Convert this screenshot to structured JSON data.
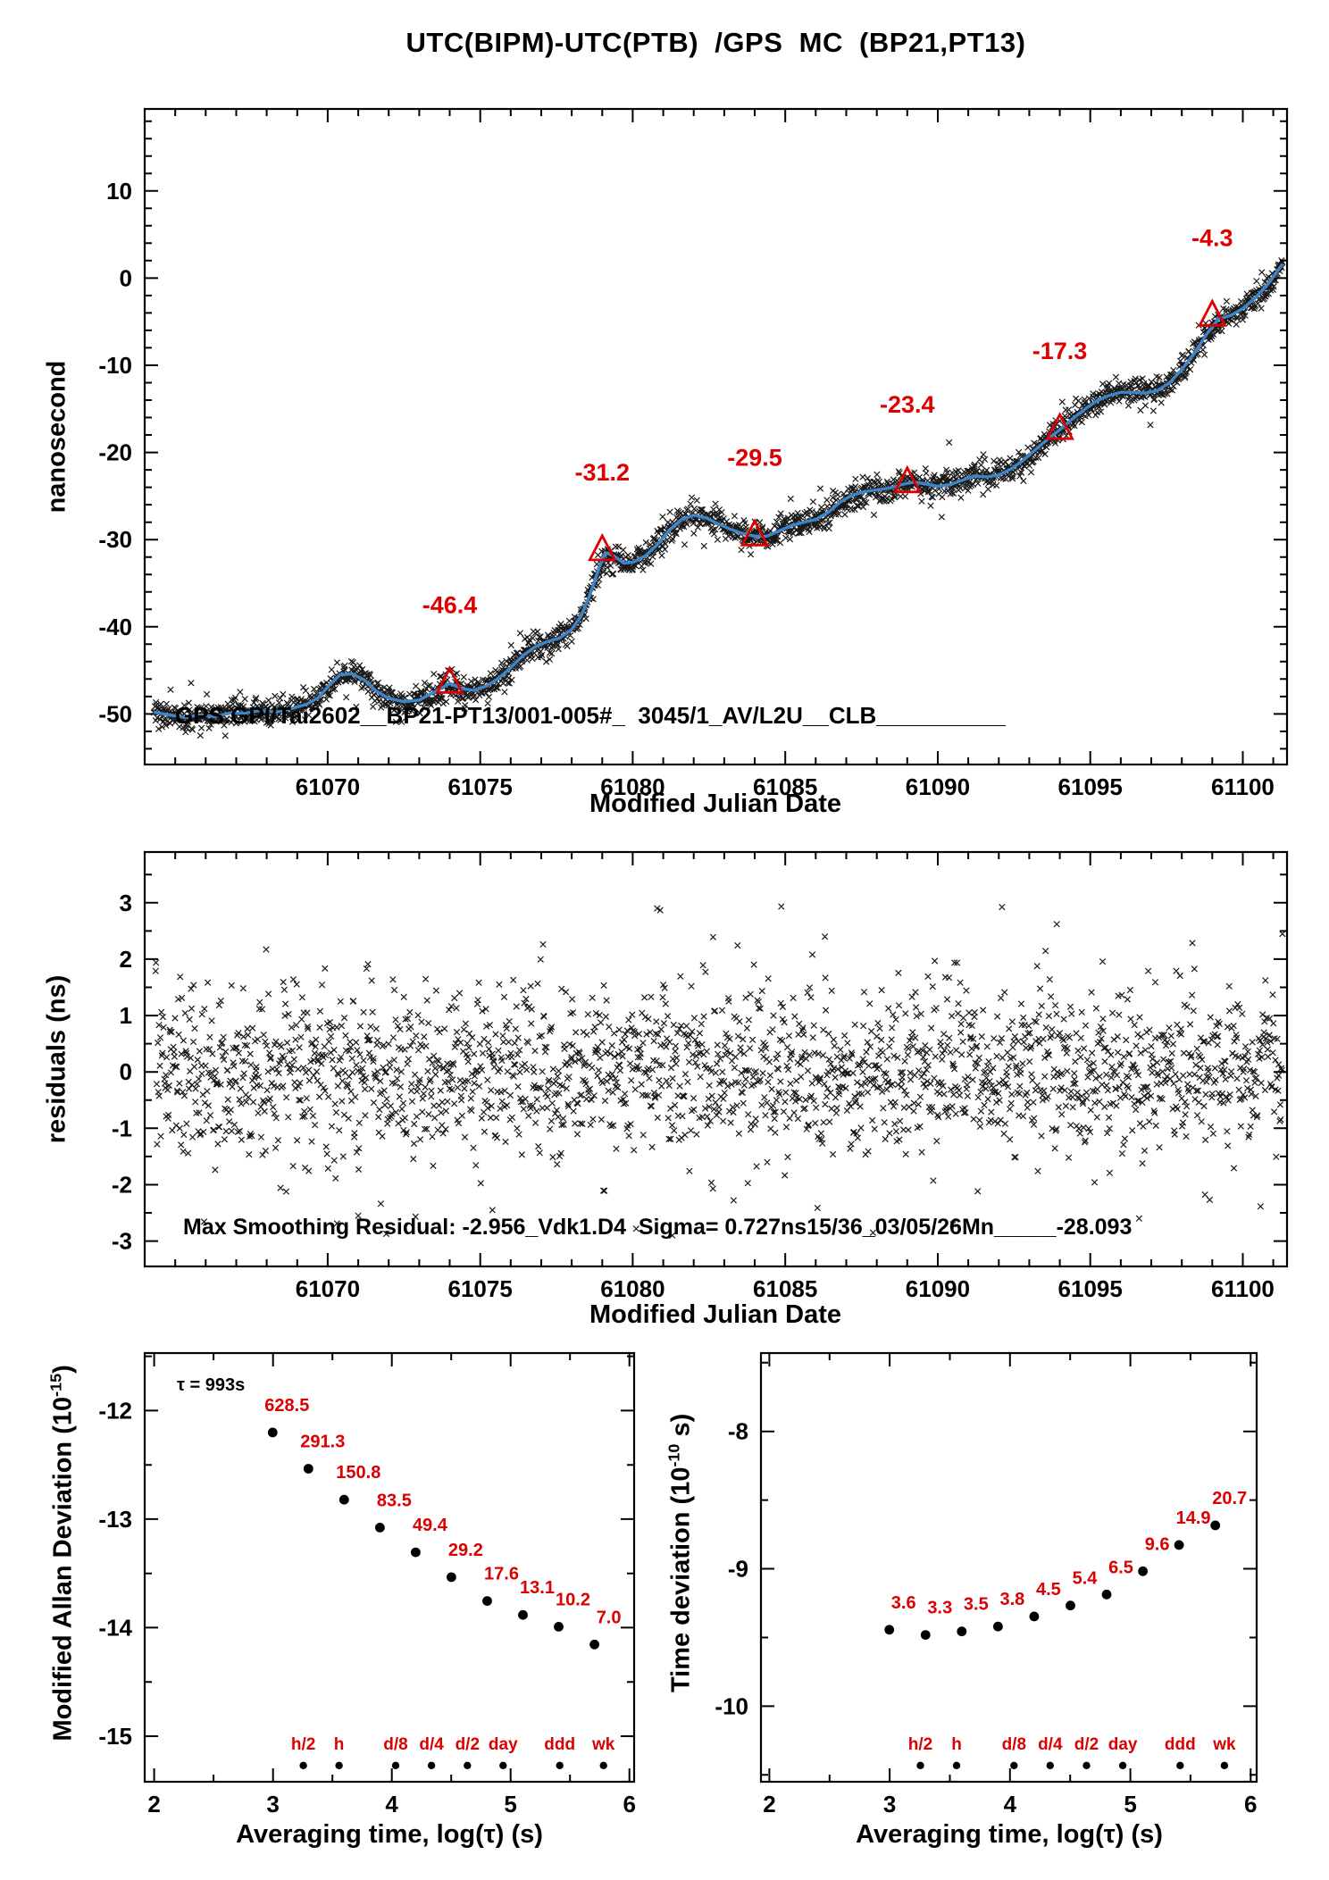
{
  "title": "UTC(BIPM)-UTC(PTB)  /GPS  MC  (BP21,PT13)",
  "colors": {
    "accent_red": "#dd0000",
    "trend_blue": "#3d85c8",
    "marker_black": "#000000"
  },
  "time_marks": [
    {
      "label": "h/2",
      "log_tau": 3.255
    },
    {
      "label": "h",
      "log_tau": 3.556
    },
    {
      "label": "d/8",
      "log_tau": 4.033
    },
    {
      "label": "d/4",
      "log_tau": 4.334
    },
    {
      "label": "d/2",
      "log_tau": 4.636
    },
    {
      "label": "day",
      "log_tau": 4.937
    },
    {
      "label": "ddd",
      "log_tau": 5.414
    },
    {
      "label": "wk",
      "log_tau": 5.782
    }
  ],
  "chart_data": [
    {
      "id": "utc_offset",
      "type": "scatter",
      "xlabel": "Modified Julian Date",
      "ylabel": "nanosecond",
      "annotation": "GPS.GPI/Tai2602__BP21-PT13/001-005#_  3045/1_AV/L2U__CLB__________",
      "xlim": [
        61064.0,
        61101.45
      ],
      "ylim": [
        -55.8,
        19.4
      ],
      "xticks": [
        61070,
        61075,
        61080,
        61085,
        61090,
        61095,
        61100
      ],
      "xminor": 1,
      "yticks": [
        10,
        0,
        -10,
        -20,
        -30,
        -40,
        -50
      ],
      "yminor": 2,
      "scatter": {
        "n": 2300,
        "sigma": 0.75,
        "seed": 7
      },
      "trend": [
        [
          61064.3,
          -49.8
        ],
        [
          61064.8,
          -50.1
        ],
        [
          61065.3,
          -50.4
        ],
        [
          61065.8,
          -50.1
        ],
        [
          61066.3,
          -50.3
        ],
        [
          61066.8,
          -49.9
        ],
        [
          61067.3,
          -49.9
        ],
        [
          61067.8,
          -49.6
        ],
        [
          61068.3,
          -49.8
        ],
        [
          61068.8,
          -49.4
        ],
        [
          61069.3,
          -48.9
        ],
        [
          61069.7,
          -48.1
        ],
        [
          61070.0,
          -46.9
        ],
        [
          61070.4,
          -45.5
        ],
        [
          61070.8,
          -45.4
        ],
        [
          61071.2,
          -46.1
        ],
        [
          61071.6,
          -47.4
        ],
        [
          61072.0,
          -48.2
        ],
        [
          61072.5,
          -48.6
        ],
        [
          61073.0,
          -48.4
        ],
        [
          61073.5,
          -47.5
        ],
        [
          61074.0,
          -46.5
        ],
        [
          61074.4,
          -47.1
        ],
        [
          61074.8,
          -47.3
        ],
        [
          61075.2,
          -46.8
        ],
        [
          61075.6,
          -45.9
        ],
        [
          61076.0,
          -44.7
        ],
        [
          61076.4,
          -43.3
        ],
        [
          61076.8,
          -42.3
        ],
        [
          61077.2,
          -41.7
        ],
        [
          61077.6,
          -41.3
        ],
        [
          61078.0,
          -40.3
        ],
        [
          61078.3,
          -38.8
        ],
        [
          61078.6,
          -36.3
        ],
        [
          61078.9,
          -33.2
        ],
        [
          61079.1,
          -31.5
        ],
        [
          61079.4,
          -31.9
        ],
        [
          61079.7,
          -32.7
        ],
        [
          61080.0,
          -32.6
        ],
        [
          61080.4,
          -31.9
        ],
        [
          61080.8,
          -30.6
        ],
        [
          61081.2,
          -28.9
        ],
        [
          61081.6,
          -27.7
        ],
        [
          61082.0,
          -27.2
        ],
        [
          61082.4,
          -27.5
        ],
        [
          61082.8,
          -28.2
        ],
        [
          61083.2,
          -28.8
        ],
        [
          61083.6,
          -29.3
        ],
        [
          61084.0,
          -29.6
        ],
        [
          61084.4,
          -29.6
        ],
        [
          61084.8,
          -29.0
        ],
        [
          61085.2,
          -28.4
        ],
        [
          61085.6,
          -28.0
        ],
        [
          61086.0,
          -27.7
        ],
        [
          61086.4,
          -26.9
        ],
        [
          61086.8,
          -25.7
        ],
        [
          61087.2,
          -24.9
        ],
        [
          61087.6,
          -24.5
        ],
        [
          61088.0,
          -24.3
        ],
        [
          61088.4,
          -24.1
        ],
        [
          61088.8,
          -23.7
        ],
        [
          61089.2,
          -23.4
        ],
        [
          61089.6,
          -23.6
        ],
        [
          61090.0,
          -23.9
        ],
        [
          61090.4,
          -23.7
        ],
        [
          61090.8,
          -23.2
        ],
        [
          61091.2,
          -22.7
        ],
        [
          61091.6,
          -22.8
        ],
        [
          61092.0,
          -22.6
        ],
        [
          61092.4,
          -21.9
        ],
        [
          61092.8,
          -20.9
        ],
        [
          61093.2,
          -19.7
        ],
        [
          61093.6,
          -18.5
        ],
        [
          61094.0,
          -17.4
        ],
        [
          61094.4,
          -16.2
        ],
        [
          61094.8,
          -15.1
        ],
        [
          61095.2,
          -14.1
        ],
        [
          61095.6,
          -13.5
        ],
        [
          61096.0,
          -13.1
        ],
        [
          61096.4,
          -13.1
        ],
        [
          61096.8,
          -13.2
        ],
        [
          61097.2,
          -12.9
        ],
        [
          61097.6,
          -12.0
        ],
        [
          61098.0,
          -10.5
        ],
        [
          61098.4,
          -8.7
        ],
        [
          61098.8,
          -6.5
        ],
        [
          61099.2,
          -4.7
        ],
        [
          61099.6,
          -4.3
        ],
        [
          61100.0,
          -3.5
        ],
        [
          61100.4,
          -2.3
        ],
        [
          61100.8,
          -0.8
        ],
        [
          61101.3,
          1.6
        ]
      ],
      "triangles": [
        {
          "x": 61074,
          "y": -46.4,
          "label": "-46.4"
        },
        {
          "x": 61079,
          "y": -31.2,
          "label": "-31.2"
        },
        {
          "x": 61084,
          "y": -29.5,
          "label": "-29.5"
        },
        {
          "x": 61089,
          "y": -23.4,
          "label": "-23.4"
        },
        {
          "x": 61094,
          "y": -17.3,
          "label": "-17.3"
        },
        {
          "x": 61099,
          "y": -4.3,
          "label": "-4.3"
        }
      ]
    },
    {
      "id": "residuals",
      "type": "scatter",
      "xlabel": "Modified Julian Date",
      "ylabel": "residuals (ns)",
      "annotation": "Max Smoothing Residual: -2.956_Vdk1.D4  Sigma= 0.727ns15/36_03/05/26Mn_____-28.093",
      "xlim": [
        61064.0,
        61101.45
      ],
      "ylim": [
        -3.45,
        3.9
      ],
      "xticks": [
        61070,
        61075,
        61080,
        61085,
        61090,
        61095,
        61100
      ],
      "xminor": 1,
      "yticks": [
        3,
        2,
        1,
        0,
        -1,
        -2,
        -3
      ],
      "yminor": 0.5,
      "scatter": {
        "n": 2100,
        "sigma": 0.73,
        "seed": 13,
        "xrange": [
          61064.35,
          61101.3
        ]
      },
      "outliers": [
        [
          61080.8,
          2.9
        ],
        [
          61081.3,
          -2.9
        ],
        [
          61093.9,
          2.62
        ],
        [
          61071.0,
          -2.55
        ],
        [
          61096.6,
          -2.6
        ],
        [
          61086.3,
          2.4
        ],
        [
          61075.4,
          -2.45
        ],
        [
          61090.5,
          -2.7
        ]
      ]
    },
    {
      "id": "mdev",
      "type": "scatter",
      "xlabel": "Averaging time, log(τ) (s)",
      "ylabel_pre": "Modified Allan Deviation (10",
      "ylabel_sup": "-15",
      "ylabel_post": ")",
      "tau_annotation": "τ = 993s",
      "value_exponent": -15,
      "xlim": [
        1.92,
        6.04
      ],
      "ylim": [
        -15.42,
        -11.47
      ],
      "xticks": [
        2,
        3,
        4,
        5,
        6
      ],
      "xminor": 0.5,
      "yticks": [
        -12,
        -13,
        -14,
        -15
      ],
      "yminor": 0.5,
      "points": [
        {
          "log_tau": 2.997,
          "value": 628.5,
          "label": "628.5"
        },
        {
          "log_tau": 3.298,
          "value": 291.3,
          "label": "291.3"
        },
        {
          "log_tau": 3.599,
          "value": 150.8,
          "label": "150.8"
        },
        {
          "log_tau": 3.9,
          "value": 83.5,
          "label": "83.5"
        },
        {
          "log_tau": 4.201,
          "value": 49.4,
          "label": "49.4"
        },
        {
          "log_tau": 4.502,
          "value": 29.2,
          "label": "29.2"
        },
        {
          "log_tau": 4.803,
          "value": 17.6,
          "label": "17.6"
        },
        {
          "log_tau": 5.104,
          "value": 13.1,
          "label": "13.1"
        },
        {
          "log_tau": 5.405,
          "value": 10.2,
          "label": "10.2"
        },
        {
          "log_tau": 5.706,
          "value": 7.0,
          "label": "7.0"
        }
      ]
    },
    {
      "id": "tdev",
      "type": "scatter",
      "xlabel": "Averaging time, log(τ) (s)",
      "ylabel_pre": "Time deviation (10",
      "ylabel_sup": "-10",
      "ylabel_post": " s)",
      "value_exponent": -10,
      "xlim": [
        1.93,
        6.05
      ],
      "ylim": [
        -10.55,
        -7.43
      ],
      "xticks": [
        2,
        3,
        4,
        5,
        6
      ],
      "xminor": 0.5,
      "yticks": [
        -8,
        -9,
        -10
      ],
      "yminor": 0.5,
      "points": [
        {
          "log_tau": 2.997,
          "value": 3.6,
          "label": "3.6"
        },
        {
          "log_tau": 3.298,
          "value": 3.3,
          "label": "3.3"
        },
        {
          "log_tau": 3.599,
          "value": 3.5,
          "label": "3.5"
        },
        {
          "log_tau": 3.9,
          "value": 3.8,
          "label": "3.8"
        },
        {
          "log_tau": 4.201,
          "value": 4.5,
          "label": "4.5"
        },
        {
          "log_tau": 4.502,
          "value": 5.4,
          "label": "5.4"
        },
        {
          "log_tau": 4.803,
          "value": 6.5,
          "label": "6.5"
        },
        {
          "log_tau": 5.104,
          "value": 9.6,
          "label": "9.6"
        },
        {
          "log_tau": 5.405,
          "value": 14.9,
          "label": "14.9"
        },
        {
          "log_tau": 5.706,
          "value": 20.7,
          "label": "20.7"
        }
      ]
    }
  ]
}
